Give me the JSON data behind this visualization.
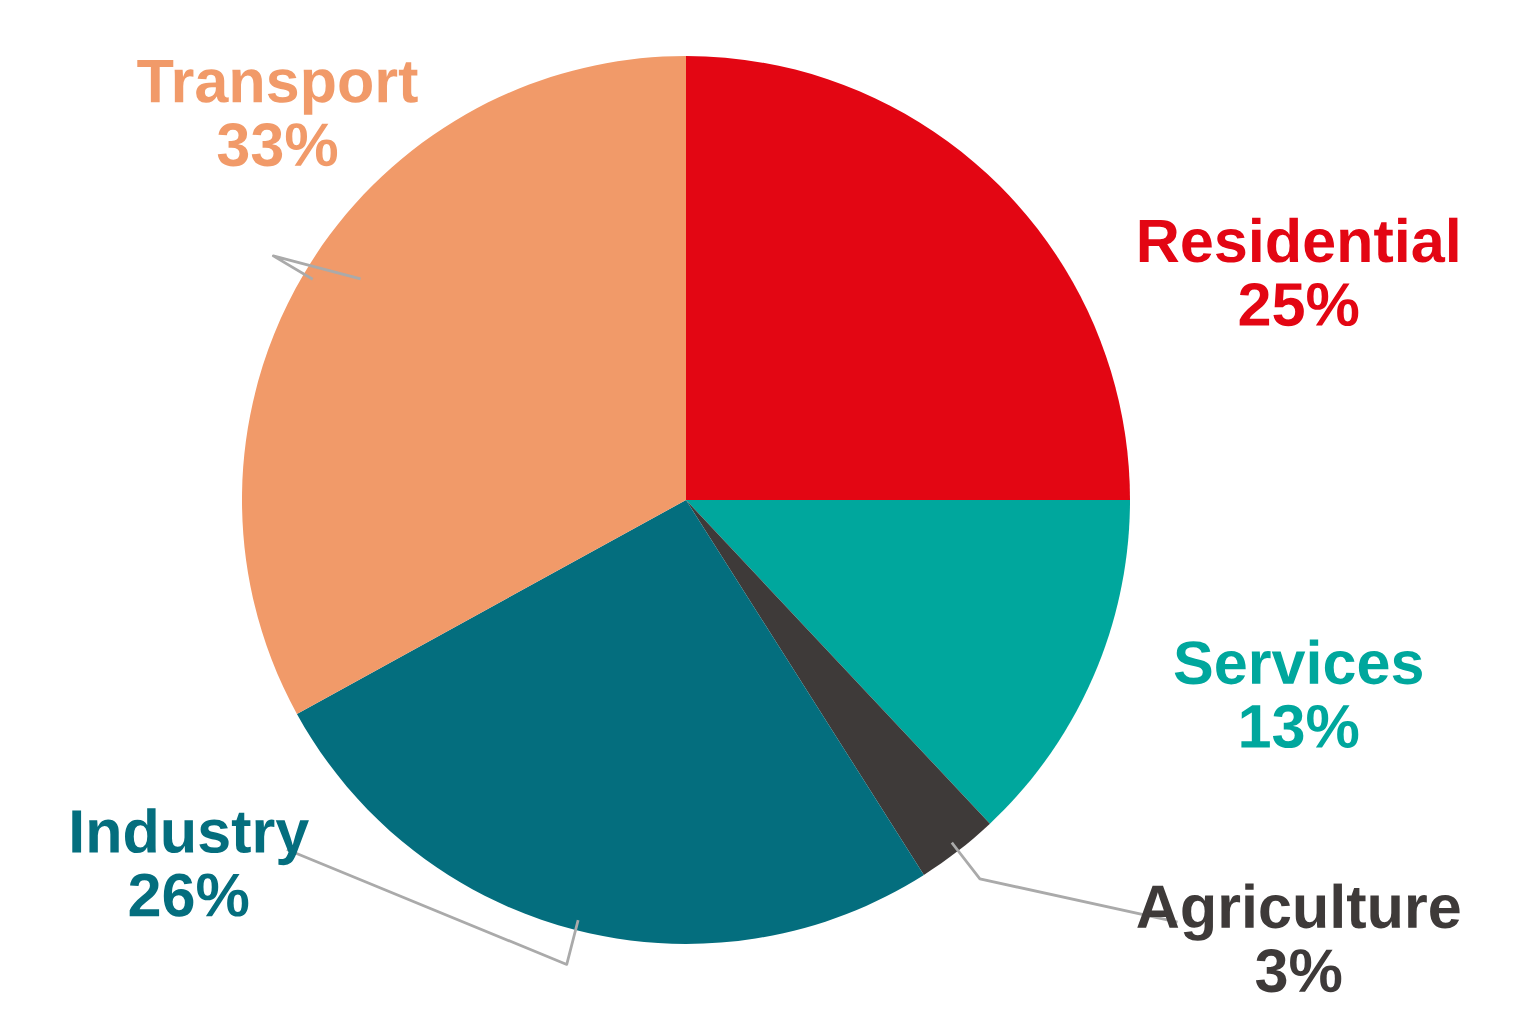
{
  "chart_data": {
    "type": "pie",
    "categories": [
      "Residential",
      "Services",
      "Agriculture",
      "Industry",
      "Transport"
    ],
    "values": [
      25,
      13,
      3,
      26,
      33
    ],
    "value_labels": [
      "25%",
      "13%",
      "3%",
      "26%",
      "33%"
    ],
    "colors": [
      "#e30613",
      "#00a79d",
      "#3e3a39",
      "#046e7e",
      "#f19a69"
    ]
  }
}
